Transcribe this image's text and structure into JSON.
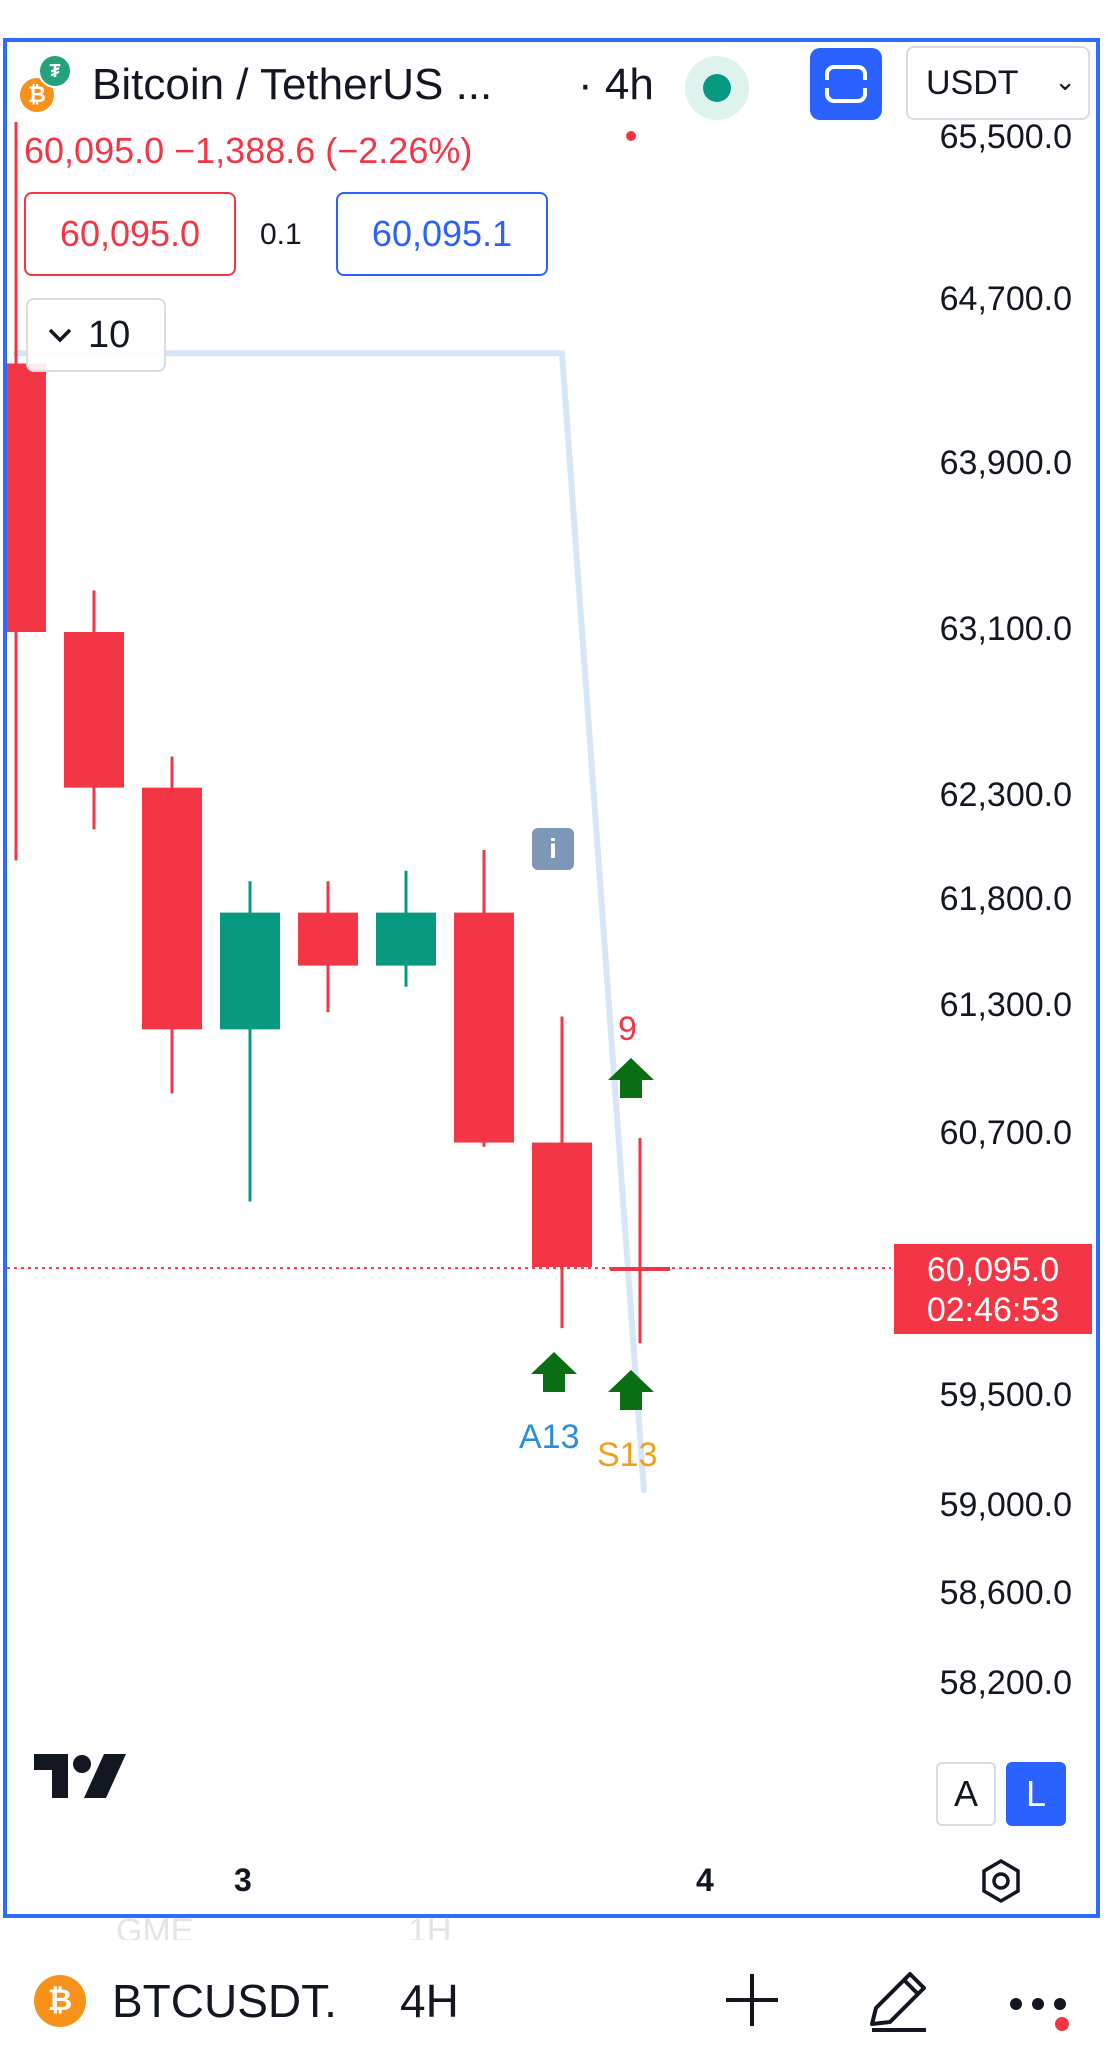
{
  "header": {
    "symbol_title": "Bitcoin / TetherUS ...",
    "interval": "· 4h",
    "currency": "USDT",
    "coin_badge": "₿",
    "quote_badge": "₮"
  },
  "quote": {
    "price_change": "60,095.0  −1,388.6 (−2.26%)",
    "bid": "60,095.0",
    "spread": "0.1",
    "ask": "60,095.1"
  },
  "indicator_panel": {
    "count": "10"
  },
  "price_axis": {
    "labels": [
      "65,500.0",
      "64,700.0",
      "63,900.0",
      "63,100.0",
      "62,300.0",
      "61,800.0",
      "61,300.0",
      "60,700.0",
      "59,500.0",
      "59,000.0",
      "58,600.0",
      "58,200.0"
    ]
  },
  "last_price": {
    "price": "60,095.0",
    "countdown": "02:46:53"
  },
  "markers": {
    "count_9": "9",
    "a13": "A13",
    "s13": "S13",
    "info": "i"
  },
  "time_axis": {
    "label_3": "3",
    "label_4": "4"
  },
  "scale_buttons": {
    "auto": "A",
    "log": "L"
  },
  "bottom_bar": {
    "ghost_1": "GME",
    "ghost_2": "1H",
    "symbol": "BTCUSDT.",
    "interval": "4H"
  },
  "colors": {
    "up": "#089981",
    "down": "#f23645",
    "accent": "#2962ff",
    "marker_arrow": "#0a6e12",
    "trend_line": "#d6e6f7"
  },
  "chart_data": {
    "type": "candlestick",
    "candles": [
      {
        "open": 64400,
        "high": 65600,
        "low": 62000,
        "close": 63100
      },
      {
        "open": 63100,
        "high": 63300,
        "low": 62150,
        "close": 62350
      },
      {
        "open": 62350,
        "high": 62500,
        "low": 60900,
        "close": 61200
      },
      {
        "open": 61200,
        "high": 61900,
        "low": 60400,
        "close": 61750
      },
      {
        "open": 61750,
        "high": 61900,
        "low": 61280,
        "close": 61500
      },
      {
        "open": 61500,
        "high": 61950,
        "low": 61400,
        "close": 61750
      },
      {
        "open": 61750,
        "high": 62050,
        "low": 60650,
        "close": 60670
      },
      {
        "open": 60670,
        "high": 61260,
        "low": 59820,
        "close": 60100
      },
      {
        "open": 60100,
        "high": 60690,
        "low": 59750,
        "close": 60095
      }
    ],
    "last_price": 60095.0,
    "y_range": [
      58000,
      65700
    ],
    "trend_line": [
      [
        0,
        64450
      ],
      [
        7,
        64450
      ],
      [
        8.05,
        59080
      ]
    ]
  }
}
